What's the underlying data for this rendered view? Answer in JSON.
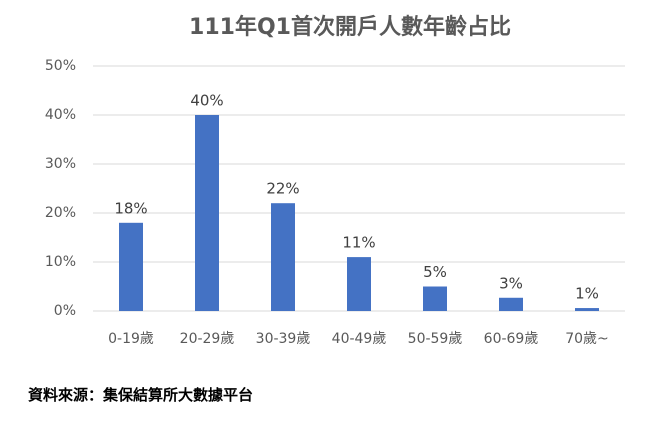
{
  "chart_data": {
    "type": "bar",
    "title": "111年Q1首次開戶人數年齡占比",
    "categories": [
      "0-19歲",
      "20-29歲",
      "30-39歲",
      "40-49歲",
      "50-59歲",
      "60-69歲",
      "70歲~"
    ],
    "values": [
      18,
      40,
      22,
      11,
      5,
      2.7,
      0.6
    ],
    "value_labels": [
      "18%",
      "40%",
      "22%",
      "11%",
      "5%",
      "3%",
      "1%"
    ],
    "color": "#4472c4",
    "ylim": [
      0,
      50
    ],
    "yticks": [
      {
        "value": 0,
        "label": "0%"
      },
      {
        "value": 10,
        "label": "10%"
      },
      {
        "value": 20,
        "label": "20%"
      },
      {
        "value": 30,
        "label": "30%"
      },
      {
        "value": 40,
        "label": "40%"
      },
      {
        "value": 50,
        "label": "50%"
      }
    ],
    "grid": true,
    "source": "資料來源：集保結算所大數據平台"
  }
}
